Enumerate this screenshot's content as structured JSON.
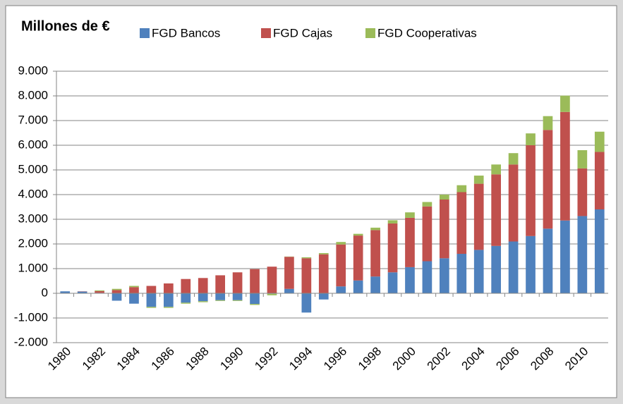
{
  "chart_data": {
    "type": "bar",
    "stacked": true,
    "title": "Millones de €",
    "categories": [
      "1980",
      null,
      "1982",
      null,
      "1984",
      null,
      "1986",
      null,
      "1988",
      null,
      "1990",
      null,
      "1992",
      null,
      "1994",
      null,
      "1996",
      null,
      "1998",
      null,
      "2000",
      null,
      "2002",
      null,
      "2004",
      null,
      "2006",
      null,
      "2008",
      null,
      "2010",
      null
    ],
    "series": [
      {
        "name": "FGD Bancos",
        "color": "#4f81bd",
        "values": [
          80,
          70,
          20,
          -300,
          -420,
          -550,
          -550,
          -380,
          -320,
          -280,
          -280,
          -430,
          -20,
          180,
          -780,
          -250,
          280,
          520,
          680,
          850,
          1060,
          1300,
          1420,
          1600,
          1760,
          1920,
          2100,
          2320,
          2620,
          2950,
          3130,
          3400
        ]
      },
      {
        "name": "FGD Cajas",
        "color": "#c0504d",
        "values": [
          0,
          10,
          70,
          130,
          250,
          300,
          400,
          580,
          620,
          730,
          850,
          980,
          1080,
          1300,
          1420,
          1580,
          1700,
          1820,
          1880,
          1980,
          2000,
          2220,
          2380,
          2500,
          2680,
          2900,
          3120,
          3680,
          4000,
          4400,
          1930,
          2330
        ]
      },
      {
        "name": "FGD Cooperativas",
        "color": "#9bbb59",
        "values": [
          0,
          0,
          30,
          50,
          50,
          -40,
          -40,
          -40,
          -40,
          -30,
          -30,
          -40,
          -60,
          10,
          40,
          50,
          100,
          70,
          100,
          130,
          220,
          180,
          200,
          280,
          330,
          400,
          460,
          480,
          560,
          660,
          740,
          820
        ]
      }
    ],
    "ylim": [
      -2000,
      9000
    ],
    "yticks": [
      {
        "value": -2000,
        "label": "-2.000"
      },
      {
        "value": -1000,
        "label": "-1.000"
      },
      0,
      {
        "value": 1000,
        "label": "1.000"
      },
      {
        "value": 2000,
        "label": "2.000"
      },
      {
        "value": 3000,
        "label": "3.000"
      },
      {
        "value": 4000,
        "label": "4.000"
      },
      {
        "value": 5000,
        "label": "5.000"
      },
      {
        "value": 6000,
        "label": "6.000"
      },
      {
        "value": 7000,
        "label": "7.000"
      },
      {
        "value": 8000,
        "label": "8.000"
      },
      {
        "value": 9000,
        "label": "9.000"
      }
    ],
    "grid": true,
    "legend": "top"
  }
}
